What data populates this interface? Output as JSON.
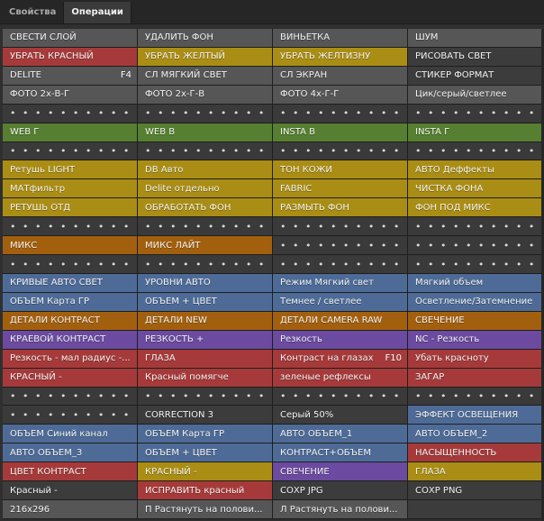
{
  "tabs": [
    "Свойства",
    "Операции"
  ],
  "colors": {
    "gray": "#565656",
    "red": "#a63a3a",
    "yellow": "#aa8d14",
    "green": "#567f31",
    "orange": "#a2600f",
    "blue": "#4e6b97",
    "purple": "#6b4aa0",
    "dark": "#3c3c3c",
    "dots": "#3a3a3a"
  },
  "actions": [
    {
      "label": "СВЕСТИ СЛОЙ",
      "color": "gray"
    },
    {
      "label": "УДАЛИТЬ ФОН",
      "color": "gray"
    },
    {
      "label": "ВИНЬЕТКА",
      "color": "gray"
    },
    {
      "label": "ШУМ",
      "color": "gray"
    },
    {
      "label": "УБРАТЬ КРАСНЫЙ",
      "color": "red"
    },
    {
      "label": "УБРАТЬ ЖЕЛТЫЙ",
      "color": "yellow"
    },
    {
      "label": "УБРАТЬ ЖЕЛТИЗНУ",
      "color": "yellow"
    },
    {
      "label": "РИСОВАТЬ СВЕТ",
      "color": "dark"
    },
    {
      "label": "DELITE",
      "shortcut": "F4",
      "color": "gray"
    },
    {
      "label": "СЛ МЯГКИЙ СВЕТ",
      "color": "gray"
    },
    {
      "label": "СЛ ЭКРАН",
      "color": "gray"
    },
    {
      "label": "СТИКЕР ФОРМАТ",
      "color": "dark"
    },
    {
      "label": "ФОТО 2х-В-Г",
      "color": "gray"
    },
    {
      "label": "ФОТО 2х-Г-В",
      "color": "gray"
    },
    {
      "label": "ФОТО 4х-Г-Г",
      "color": "gray"
    },
    {
      "label": "Цик/серый/светлее",
      "color": "gray"
    },
    {
      "label": "• • • • • • • • • • •",
      "color": "dots"
    },
    {
      "label": "• • • • • • • • • • •",
      "color": "dots"
    },
    {
      "label": "• • • • • • • • • • •",
      "color": "dots"
    },
    {
      "label": "• • • • • • • • • • •",
      "color": "dots"
    },
    {
      "label": "WEB Г",
      "color": "green"
    },
    {
      "label": "WEB В",
      "color": "green"
    },
    {
      "label": "INSTA В",
      "color": "green"
    },
    {
      "label": "INSTA Г",
      "color": "green"
    },
    {
      "label": "• • • • • • • • • • •",
      "color": "dots"
    },
    {
      "label": "• • • • • • • • • • •",
      "color": "dots"
    },
    {
      "label": "• • • • • • • • • • •",
      "color": "dots"
    },
    {
      "label": "• • • • • • • • • • •",
      "color": "dots"
    },
    {
      "label": "Ретушь LIGHT",
      "color": "yellow"
    },
    {
      "label": "DB Авто",
      "color": "yellow"
    },
    {
      "label": "ТОН КОЖИ",
      "color": "yellow"
    },
    {
      "label": "АВТО Деффекты",
      "color": "yellow"
    },
    {
      "label": "МАТфильтр",
      "color": "yellow"
    },
    {
      "label": "Delite отдельно",
      "color": "yellow"
    },
    {
      "label": "FABRIC",
      "color": "yellow"
    },
    {
      "label": "ЧИСТКА ФОНА",
      "color": "yellow"
    },
    {
      "label": "РЕТУШЬ ОТД",
      "color": "yellow"
    },
    {
      "label": "ОБРАБОТАТЬ ФОН",
      "color": "yellow"
    },
    {
      "label": "РАЗМЫТЬ ФОН",
      "color": "yellow"
    },
    {
      "label": "ФОН ПОД МИКС",
      "color": "yellow"
    },
    {
      "label": "• • • • • • • • • • •",
      "color": "dots"
    },
    {
      "label": "• • • • • • • • • • •",
      "color": "dots"
    },
    {
      "label": "• • • • • • • • • • •",
      "color": "dots"
    },
    {
      "label": "• • • • • • • • • • •",
      "color": "dots"
    },
    {
      "label": "МИКС",
      "color": "orange"
    },
    {
      "label": "МИКС ЛАЙТ",
      "color": "orange"
    },
    {
      "label": "• • • • • • • • • • •",
      "color": "dots"
    },
    {
      "label": "• • • • • • • • • • •",
      "color": "dots"
    },
    {
      "label": "• • • • • • • • • • •",
      "color": "dots"
    },
    {
      "label": "• • • • • • • • • • •",
      "color": "dots"
    },
    {
      "label": "• • • • • • • • • • •",
      "color": "dots"
    },
    {
      "label": "• • • • • • • • • • •",
      "color": "dots"
    },
    {
      "label": "КРИВЫЕ АВТО СВЕТ",
      "color": "blue"
    },
    {
      "label": "УРОВНИ АВТО",
      "color": "blue"
    },
    {
      "label": "Режим Мягкий свет",
      "color": "blue"
    },
    {
      "label": "Мягкий объем",
      "color": "blue"
    },
    {
      "label": "ОБЪЕМ Карта ГР",
      "color": "blue"
    },
    {
      "label": "ОБЪЕМ + ЦВЕТ",
      "color": "blue"
    },
    {
      "label": "Темнее / светлее",
      "color": "blue"
    },
    {
      "label": "Осветление/Затемнение",
      "color": "blue"
    },
    {
      "label": "ДЕТАЛИ КОНТРАСТ",
      "color": "orange"
    },
    {
      "label": "ДЕТАЛИ NEW",
      "color": "orange"
    },
    {
      "label": "ДЕТАЛИ CAMERA RAW",
      "color": "orange"
    },
    {
      "label": "СВЕЧЕНИЕ",
      "color": "orange"
    },
    {
      "label": "КРАЕВОЙ КОНТРАСТ",
      "color": "purple"
    },
    {
      "label": "РЕЗКОСТЬ +",
      "color": "purple"
    },
    {
      "label": "Резкость",
      "color": "purple"
    },
    {
      "label": "NC - Резкость",
      "color": "purple"
    },
    {
      "label": "Резкость - мал радиус -...",
      "color": "red"
    },
    {
      "label": "ГЛАЗА",
      "color": "red"
    },
    {
      "label": "Контраст на глазах",
      "shortcut": "F10",
      "color": "red"
    },
    {
      "label": "Убать красноту",
      "color": "red"
    },
    {
      "label": "КРАСНЫЙ -",
      "color": "red"
    },
    {
      "label": "Красный помягче",
      "color": "red"
    },
    {
      "label": "зеленые рефлексы",
      "color": "red"
    },
    {
      "label": "ЗАГАР",
      "color": "red"
    },
    {
      "label": "• • • • • • • • • • •",
      "color": "dots"
    },
    {
      "label": "• • • • • • • • • • •",
      "color": "dots"
    },
    {
      "label": "• • • • • • • • • • •",
      "color": "dots"
    },
    {
      "label": "• • • • • • • • • • •",
      "color": "dots"
    },
    {
      "label": "• • • • • • • • • • •",
      "color": "dots"
    },
    {
      "label": "CORRECTION 3",
      "color": "dark"
    },
    {
      "label": "Серый 50%",
      "color": "dark"
    },
    {
      "label": "ЭФФЕКТ ОСВЕЩЕНИЯ",
      "color": "blue"
    },
    {
      "label": "ОБЪЕМ Синий канал",
      "color": "blue"
    },
    {
      "label": "ОБЪЕМ Карта ГР",
      "color": "blue"
    },
    {
      "label": "АВТО ОБЪЕМ_1",
      "color": "blue"
    },
    {
      "label": "АВТО ОБЪЕМ_2",
      "color": "blue"
    },
    {
      "label": "АВТО ОБЪЕМ_3",
      "color": "blue"
    },
    {
      "label": "ОБЪЕМ + ЦВЕТ",
      "color": "blue"
    },
    {
      "label": "КОНТРАСТ+ОБЪЕМ",
      "color": "blue"
    },
    {
      "label": "НАСЫЩЕННОСТЬ",
      "color": "red"
    },
    {
      "label": "ЦВЕТ КОНТРАСТ",
      "color": "red"
    },
    {
      "label": "КРАСНЫЙ -",
      "color": "yellow"
    },
    {
      "label": "СВЕЧЕНИЕ",
      "color": "purple"
    },
    {
      "label": "ГЛАЗА",
      "color": "yellow"
    },
    {
      "label": "Красный -",
      "color": "dark"
    },
    {
      "label": "ИСПРАВИТЬ красный",
      "color": "red"
    },
    {
      "label": "СОХР JPG",
      "color": "dark"
    },
    {
      "label": "СОХР PNG",
      "color": "dark"
    },
    {
      "label": "216х296",
      "color": "gray"
    },
    {
      "label": "П Растянуть на полови...",
      "color": "gray"
    },
    {
      "label": "Л Растянуть на полови...",
      "color": "gray"
    },
    {
      "label": "",
      "color": "dark"
    }
  ]
}
